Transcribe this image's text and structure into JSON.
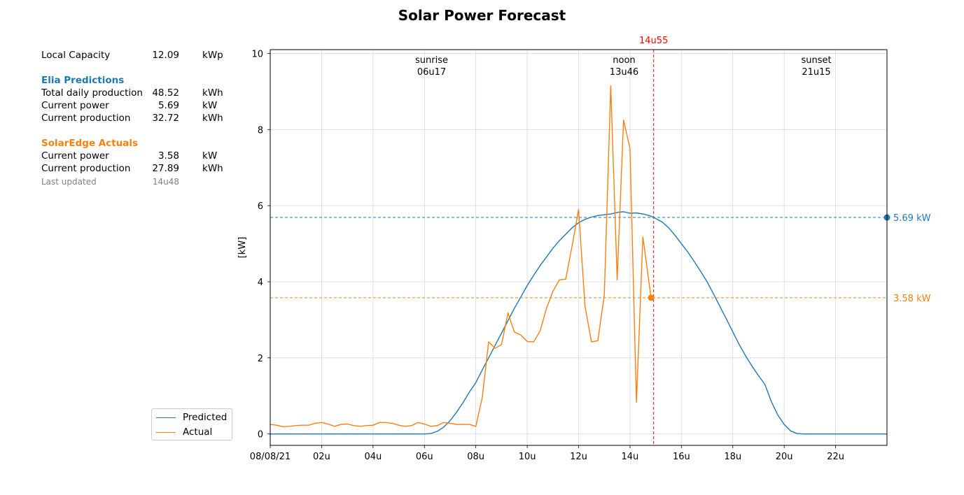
{
  "title": "Solar Power Forecast",
  "info": {
    "local_capacity": {
      "label": "Local Capacity",
      "value": "12.09",
      "unit": "kWp"
    },
    "elia": {
      "heading": "Elia Predictions",
      "rows": [
        {
          "label": "Total daily production",
          "value": "48.52",
          "unit": "kWh"
        },
        {
          "label": "Current power",
          "value": "5.69",
          "unit": "kW"
        },
        {
          "label": "Current production",
          "value": "32.72",
          "unit": "kWh"
        }
      ]
    },
    "solaredge": {
      "heading": "SolarEdge Actuals",
      "rows": [
        {
          "label": "Current power",
          "value": "3.58",
          "unit": "kW"
        },
        {
          "label": "Current production",
          "value": "27.89",
          "unit": "kWh"
        }
      ]
    },
    "last_updated": {
      "label": "Last updated",
      "value": "14u48"
    }
  },
  "colors": {
    "predicted": "#1f77b4",
    "actual": "#ff7f0e",
    "now": "#ff0000",
    "grid": "#d9d9d9"
  },
  "chart_data": {
    "type": "line",
    "title": "Solar Power Forecast",
    "ylabel": "[kW]",
    "xlim": [
      0,
      24
    ],
    "ylim": [
      -0.3,
      10.1
    ],
    "grid": true,
    "legend_placement": "lower-left",
    "y_ticks": [
      0,
      2,
      4,
      6,
      8,
      10
    ],
    "x_ticks": [
      {
        "h": 0,
        "label": "08/08/21"
      },
      {
        "h": 2,
        "label": "02u"
      },
      {
        "h": 4,
        "label": "04u"
      },
      {
        "h": 6,
        "label": "06u"
      },
      {
        "h": 8,
        "label": "08u"
      },
      {
        "h": 10,
        "label": "10u"
      },
      {
        "h": 12,
        "label": "12u"
      },
      {
        "h": 14,
        "label": "14u"
      },
      {
        "h": 16,
        "label": "16u"
      },
      {
        "h": 18,
        "label": "18u"
      },
      {
        "h": 20,
        "label": "20u"
      },
      {
        "h": 22,
        "label": "22u"
      }
    ],
    "events": [
      {
        "name": "sunrise",
        "time": "06u17",
        "h": 6.28
      },
      {
        "name": "noon",
        "time": "13u46",
        "h": 13.77
      },
      {
        "name": "sunset",
        "time": "21u15",
        "h": 21.25
      }
    ],
    "now": {
      "label": "14u55",
      "h": 14.92
    },
    "series": [
      {
        "name": "Predicted",
        "color": "#1f77b4",
        "current_label": "5.69 kW",
        "current_value": 5.69,
        "points": [
          [
            0,
            0
          ],
          [
            6,
            0
          ],
          [
            6.25,
            0.01
          ],
          [
            6.5,
            0.07
          ],
          [
            6.75,
            0.18
          ],
          [
            7,
            0.35
          ],
          [
            7.25,
            0.57
          ],
          [
            7.5,
            0.82
          ],
          [
            7.75,
            1.1
          ],
          [
            8,
            1.35
          ],
          [
            8.25,
            1.68
          ],
          [
            8.5,
            2.0
          ],
          [
            8.75,
            2.33
          ],
          [
            9,
            2.65
          ],
          [
            9.25,
            2.98
          ],
          [
            9.5,
            3.3
          ],
          [
            9.75,
            3.6
          ],
          [
            10,
            3.9
          ],
          [
            10.25,
            4.17
          ],
          [
            10.5,
            4.42
          ],
          [
            10.75,
            4.65
          ],
          [
            11,
            4.88
          ],
          [
            11.25,
            5.08
          ],
          [
            11.5,
            5.25
          ],
          [
            11.75,
            5.42
          ],
          [
            12,
            5.55
          ],
          [
            12.25,
            5.64
          ],
          [
            12.5,
            5.7
          ],
          [
            12.75,
            5.74
          ],
          [
            13,
            5.76
          ],
          [
            13.25,
            5.78
          ],
          [
            13.5,
            5.82
          ],
          [
            13.75,
            5.84
          ],
          [
            14,
            5.8
          ],
          [
            14.25,
            5.81
          ],
          [
            14.5,
            5.78
          ],
          [
            14.75,
            5.74
          ],
          [
            14.92,
            5.69
          ],
          [
            15.25,
            5.57
          ],
          [
            15.5,
            5.42
          ],
          [
            15.75,
            5.22
          ],
          [
            16,
            5.0
          ],
          [
            16.25,
            4.78
          ],
          [
            16.5,
            4.53
          ],
          [
            16.75,
            4.27
          ],
          [
            17,
            4.0
          ],
          [
            17.25,
            3.68
          ],
          [
            17.5,
            3.35
          ],
          [
            17.75,
            3.02
          ],
          [
            18,
            2.68
          ],
          [
            18.25,
            2.35
          ],
          [
            18.5,
            2.05
          ],
          [
            18.75,
            1.78
          ],
          [
            19,
            1.53
          ],
          [
            19.25,
            1.3
          ],
          [
            19.5,
            0.85
          ],
          [
            19.75,
            0.5
          ],
          [
            20,
            0.25
          ],
          [
            20.25,
            0.08
          ],
          [
            20.5,
            0.01
          ],
          [
            20.75,
            0
          ],
          [
            24,
            0
          ]
        ]
      },
      {
        "name": "Actual",
        "color": "#ff7f0e",
        "current_label": "3.58 kW",
        "current_value": 3.58,
        "points": [
          [
            0,
            0.25
          ],
          [
            0.25,
            0.23
          ],
          [
            0.5,
            0.19
          ],
          [
            0.75,
            0.2
          ],
          [
            1,
            0.22
          ],
          [
            1.25,
            0.23
          ],
          [
            1.5,
            0.23
          ],
          [
            1.75,
            0.28
          ],
          [
            2,
            0.3
          ],
          [
            2.25,
            0.26
          ],
          [
            2.5,
            0.2
          ],
          [
            2.75,
            0.25
          ],
          [
            3,
            0.26
          ],
          [
            3.25,
            0.22
          ],
          [
            3.5,
            0.2
          ],
          [
            3.75,
            0.22
          ],
          [
            4,
            0.23
          ],
          [
            4.25,
            0.3
          ],
          [
            4.5,
            0.3
          ],
          [
            4.75,
            0.28
          ],
          [
            5,
            0.23
          ],
          [
            5.25,
            0.2
          ],
          [
            5.5,
            0.22
          ],
          [
            5.75,
            0.3
          ],
          [
            6,
            0.26
          ],
          [
            6.25,
            0.2
          ],
          [
            6.5,
            0.22
          ],
          [
            6.75,
            0.3
          ],
          [
            7,
            0.28
          ],
          [
            7.25,
            0.25
          ],
          [
            7.5,
            0.25
          ],
          [
            7.75,
            0.25
          ],
          [
            8,
            0.2
          ],
          [
            8.25,
            0.95
          ],
          [
            8.5,
            2.42
          ],
          [
            8.75,
            2.25
          ],
          [
            9,
            2.35
          ],
          [
            9.25,
            3.18
          ],
          [
            9.5,
            2.68
          ],
          [
            9.75,
            2.6
          ],
          [
            10,
            2.43
          ],
          [
            10.25,
            2.42
          ],
          [
            10.5,
            2.7
          ],
          [
            10.75,
            3.3
          ],
          [
            11,
            3.75
          ],
          [
            11.25,
            4.05
          ],
          [
            11.5,
            4.07
          ],
          [
            11.75,
            4.95
          ],
          [
            12,
            5.9
          ],
          [
            12.25,
            3.35
          ],
          [
            12.5,
            2.42
          ],
          [
            12.75,
            2.45
          ],
          [
            13,
            3.65
          ],
          [
            13.25,
            9.15
          ],
          [
            13.5,
            4.05
          ],
          [
            13.75,
            8.25
          ],
          [
            14,
            7.5
          ],
          [
            14.25,
            0.83
          ],
          [
            14.5,
            5.18
          ],
          [
            14.82,
            3.58
          ]
        ]
      }
    ]
  }
}
